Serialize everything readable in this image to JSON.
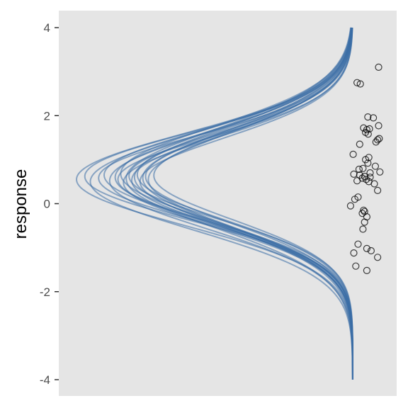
{
  "chart_data": {
    "type": "line",
    "title": "",
    "xlabel": "",
    "ylabel": "response",
    "ylim": [
      -4,
      4
    ],
    "y_ticks": [
      4,
      2,
      0,
      -2,
      -4
    ],
    "y_tick_labels": [
      "4",
      "2",
      "0",
      "-2",
      "-4"
    ],
    "grid": false,
    "panel_background": "#e5e5e5",
    "curve_color": "#3a6ea5",
    "point_color": "#000000",
    "x_axis_visible": false,
    "density_curves": {
      "description_units": "normal density curves of response, drawn horizontally",
      "series": [
        {
          "mean": 0.55,
          "sd": 1.05,
          "peak": 1.0
        },
        {
          "mean": 0.62,
          "sd": 1.0,
          "peak": 0.97
        },
        {
          "mean": 0.5,
          "sd": 1.1,
          "peak": 0.95
        },
        {
          "mean": 0.58,
          "sd": 0.98,
          "peak": 0.92
        },
        {
          "mean": 0.65,
          "sd": 1.02,
          "peak": 0.9
        },
        {
          "mean": 0.52,
          "sd": 1.08,
          "peak": 0.88
        },
        {
          "mean": 0.6,
          "sd": 1.04,
          "peak": 0.86
        },
        {
          "mean": 0.55,
          "sd": 0.96,
          "peak": 0.85
        },
        {
          "mean": 0.68,
          "sd": 1.06,
          "peak": 0.84
        },
        {
          "mean": 0.48,
          "sd": 1.0,
          "peak": 0.83
        },
        {
          "mean": 0.57,
          "sd": 1.12,
          "peak": 0.82
        },
        {
          "mean": 0.63,
          "sd": 0.97,
          "peak": 0.81
        },
        {
          "mean": 0.53,
          "sd": 1.03,
          "peak": 0.8
        },
        {
          "mean": 0.6,
          "sd": 1.09,
          "peak": 0.79
        },
        {
          "mean": 0.66,
          "sd": 1.01,
          "peak": 0.78
        },
        {
          "mean": 0.5,
          "sd": 0.99,
          "peak": 0.77
        },
        {
          "mean": 0.58,
          "sd": 1.07,
          "peak": 0.76
        },
        {
          "mean": 0.62,
          "sd": 1.03,
          "peak": 0.75
        },
        {
          "mean": 0.55,
          "sd": 1.05,
          "peak": 0.74
        },
        {
          "mean": 0.64,
          "sd": 1.0,
          "peak": 0.72
        }
      ]
    },
    "points": {
      "description_units": "observed response values, horizontally jittered",
      "y": [
        3.1,
        2.75,
        2.72,
        1.97,
        1.95,
        1.77,
        1.72,
        1.7,
        1.68,
        1.62,
        1.58,
        1.48,
        1.45,
        1.4,
        1.35,
        1.12,
        1.05,
        1.0,
        0.92,
        0.85,
        0.8,
        0.78,
        0.72,
        0.7,
        0.67,
        0.65,
        0.62,
        0.6,
        0.58,
        0.55,
        0.52,
        0.5,
        0.45,
        0.3,
        0.15,
        0.1,
        -0.05,
        -0.15,
        -0.18,
        -0.22,
        -0.3,
        -0.42,
        -0.58,
        -0.92,
        -1.02,
        -1.07,
        -1.12,
        -1.22,
        -1.42,
        -1.52
      ],
      "jitter": [
        0.88,
        0.22,
        0.32,
        0.55,
        0.72,
        0.88,
        0.42,
        0.6,
        0.52,
        0.48,
        0.56,
        0.9,
        0.85,
        0.8,
        0.3,
        0.1,
        0.58,
        0.48,
        0.55,
        0.78,
        0.4,
        0.28,
        0.92,
        0.62,
        0.12,
        0.3,
        0.45,
        0.62,
        0.38,
        0.5,
        0.22,
        0.58,
        0.75,
        0.85,
        0.25,
        0.15,
        0.02,
        0.42,
        0.45,
        0.38,
        0.52,
        0.45,
        0.4,
        0.25,
        0.52,
        0.65,
        0.12,
        0.85,
        0.18,
        0.52
      ]
    }
  }
}
